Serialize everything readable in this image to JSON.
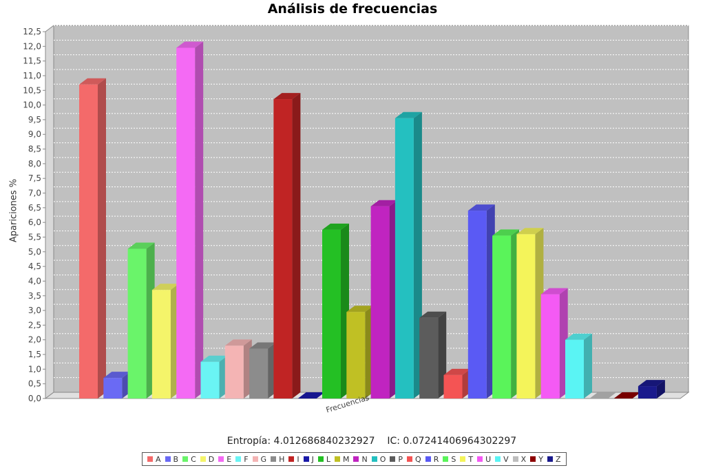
{
  "chart_data": {
    "type": "bar",
    "title": "Análisis de frecuencias",
    "ylabel": "Apariciones %",
    "xlabel": "",
    "category_label": "Frecuencias",
    "ylim": [
      0,
      12.5
    ],
    "ytick_step": 0.5,
    "grid": true,
    "legend_position": "bottom",
    "series": [
      {
        "name": "A",
        "value": 10.7,
        "color": "#f46a6a"
      },
      {
        "name": "B",
        "value": 0.7,
        "color": "#6a6af4"
      },
      {
        "name": "C",
        "value": 5.1,
        "color": "#6af46a"
      },
      {
        "name": "D",
        "value": 3.7,
        "color": "#f4f46a"
      },
      {
        "name": "E",
        "value": 11.95,
        "color": "#f46af4"
      },
      {
        "name": "F",
        "value": 1.25,
        "color": "#6af4f4"
      },
      {
        "name": "G",
        "value": 1.8,
        "color": "#f4b4b4"
      },
      {
        "name": "H",
        "value": 1.7,
        "color": "#8c8c8c"
      },
      {
        "name": "I",
        "value": 10.2,
        "color": "#c02424"
      },
      {
        "name": "J",
        "value": 0.0,
        "color": "#1a1aa8"
      },
      {
        "name": "L",
        "value": 5.75,
        "color": "#24c024"
      },
      {
        "name": "M",
        "value": 2.95,
        "color": "#c0c024"
      },
      {
        "name": "N",
        "value": 6.55,
        "color": "#c024c0"
      },
      {
        "name": "O",
        "value": 9.55,
        "color": "#24c0c0"
      },
      {
        "name": "P",
        "value": 2.75,
        "color": "#5c5c5c"
      },
      {
        "name": "Q",
        "value": 0.8,
        "color": "#f45454"
      },
      {
        "name": "R",
        "value": 6.4,
        "color": "#5a5af4"
      },
      {
        "name": "S",
        "value": 5.55,
        "color": "#5af45a"
      },
      {
        "name": "T",
        "value": 5.6,
        "color": "#f4f45a"
      },
      {
        "name": "U",
        "value": 3.55,
        "color": "#f45af4"
      },
      {
        "name": "V",
        "value": 2.0,
        "color": "#5af4f4"
      },
      {
        "name": "X",
        "value": 0.0,
        "color": "#bdbdbd"
      },
      {
        "name": "Y",
        "value": 0.0,
        "color": "#8c0000"
      },
      {
        "name": "Z",
        "value": 0.42,
        "color": "#1a1a8c"
      }
    ]
  },
  "footer": {
    "entropia_label": "Entropía:",
    "entropia_value": "4.012686840232927",
    "ic_label": "IC:",
    "ic_value": "0.07241406964302297"
  }
}
